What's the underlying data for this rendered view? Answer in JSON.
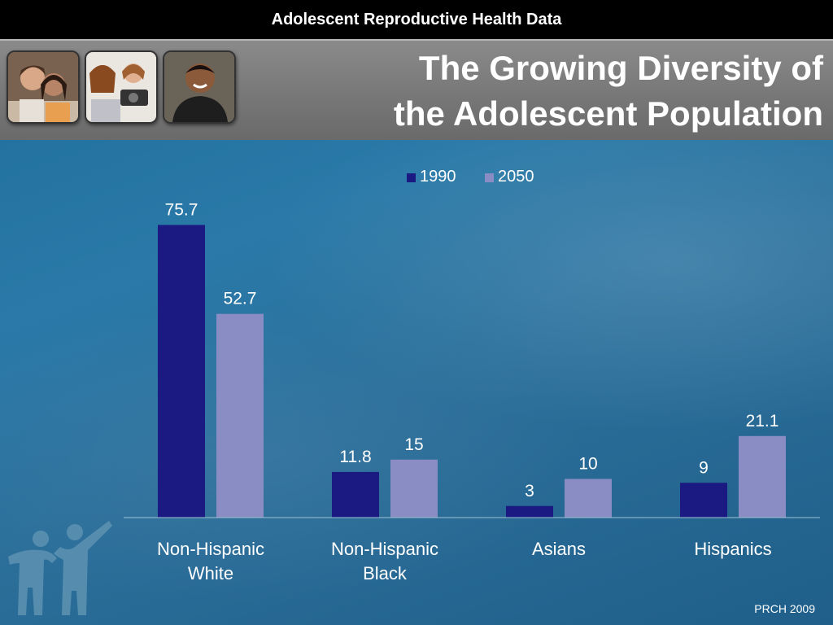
{
  "header": {
    "banner": "Adolescent Reproductive Health Data",
    "title_line1": "The Growing Diversity of",
    "title_line2": "the Adolescent Population"
  },
  "footer": {
    "credit": "PRCH 2009"
  },
  "chart_data": {
    "type": "bar",
    "categories": [
      [
        "Non-Hispanic",
        "White"
      ],
      [
        "Non-Hispanic",
        "Black"
      ],
      [
        "Asians"
      ],
      [
        "Hispanics"
      ]
    ],
    "series": [
      {
        "name": "1990",
        "values": [
          75.7,
          11.8,
          3,
          9
        ],
        "labels": [
          "75.7",
          "11.8",
          "3",
          "9"
        ],
        "color": "#1b1a82"
      },
      {
        "name": "2050",
        "values": [
          52.7,
          15,
          10,
          21.1
        ],
        "labels": [
          "52.7",
          "15",
          "10",
          "21.1"
        ],
        "color": "#8a8cc4"
      }
    ],
    "ylim": [
      0,
      80
    ],
    "grid": false,
    "legend": "top-center"
  }
}
